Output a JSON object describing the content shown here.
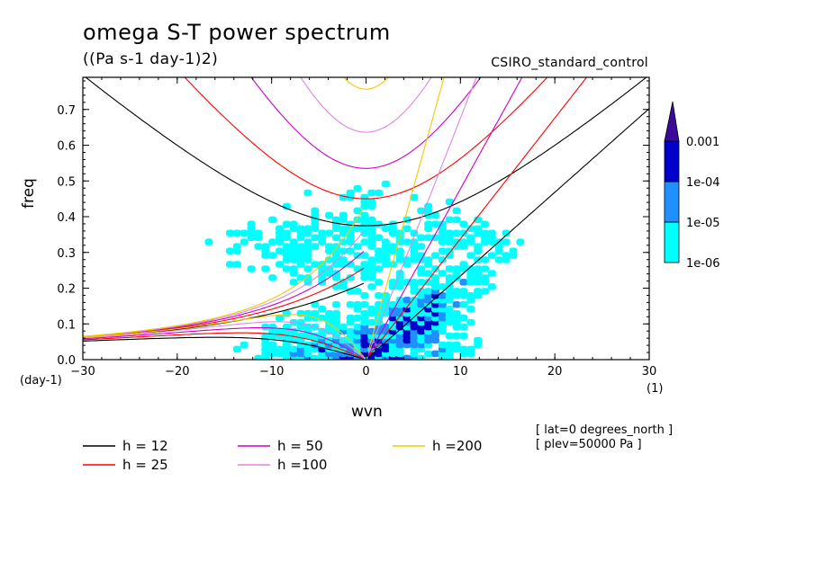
{
  "title": "omega S-T power spectrum",
  "units": "((Pa s-1 day-1)2)",
  "run_label": "CSIRO_standard_control",
  "meta": [
    "[ lat=0 degrees_north ]",
    "[ plev=50000 Pa ]"
  ],
  "chart_data": {
    "type": "heatmap",
    "xlabel": "wvn",
    "xunit": "(1)",
    "ylabel": "freq",
    "yunit": "(day-1)",
    "xlim": [
      -30,
      30
    ],
    "ylim": [
      0.0,
      0.79
    ],
    "xticks": [
      "-30",
      "-20",
      "-10",
      "0",
      "10",
      "20",
      "30"
    ],
    "yticks": [
      "0.0",
      "0.1",
      "0.2",
      "0.3",
      "0.4",
      "0.5",
      "0.6",
      "0.7"
    ],
    "colorbar": {
      "levels": [
        "1e-06",
        "1e-05",
        "1e-04",
        "0.001"
      ],
      "colors": [
        "#00ffff",
        "#1e90ff",
        "#0000cd",
        "#3a0a9a"
      ]
    },
    "legend": [
      {
        "label": "h = 12",
        "color": "#000000"
      },
      {
        "label": "h = 25",
        "color": "#ff0000"
      },
      {
        "label": "h = 50",
        "color": "#cc00cc"
      },
      {
        "label": "h =100",
        "color": "#dd88dd"
      },
      {
        "label": "h =200",
        "color": "#f0c800"
      }
    ],
    "dispersion_curves": [
      {
        "h": 12,
        "color": "#000000"
      },
      {
        "h": 25,
        "color": "#ff0000"
      },
      {
        "h": 50,
        "color": "#cc00cc"
      },
      {
        "h": 100,
        "color": "#dd88dd"
      },
      {
        "h": 200,
        "color": "#f0c800"
      }
    ]
  }
}
